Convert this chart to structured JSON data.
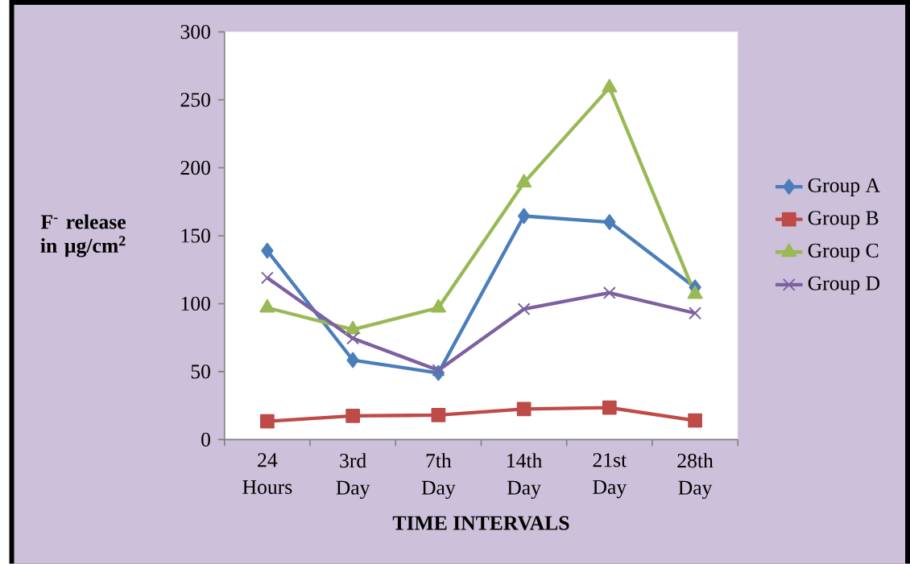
{
  "chart_data": {
    "type": "line",
    "xlabel": "TIME INTERVALS",
    "ylabel": "F$^{-}$ release in µg/cm$^{2}$",
    "categories": [
      "24 Hours",
      "3rd Day",
      "7th Day",
      "14th Day",
      "21st Day",
      "28th Day"
    ],
    "ylim": [
      0,
      300
    ],
    "yticks": [
      0,
      50,
      100,
      150,
      200,
      250,
      300
    ],
    "grid": false,
    "legend": "right",
    "series": [
      {
        "name": "Group A",
        "color": "#4a7ebb",
        "marker": "diamond",
        "values": [
          139,
          58.5,
          49,
          164.5,
          160,
          112
        ]
      },
      {
        "name": "Group B",
        "color": "#be4b48",
        "marker": "square",
        "values": [
          13.5,
          17.5,
          18,
          22.5,
          23.5,
          14
        ]
      },
      {
        "name": "Group C",
        "color": "#98b954",
        "marker": "triangle",
        "values": [
          97,
          81,
          97,
          189,
          259,
          107
        ]
      },
      {
        "name": "Group D",
        "color": "#7d60a0",
        "marker": "cross",
        "values": [
          119,
          74.5,
          51,
          96,
          108,
          93
        ]
      }
    ]
  }
}
